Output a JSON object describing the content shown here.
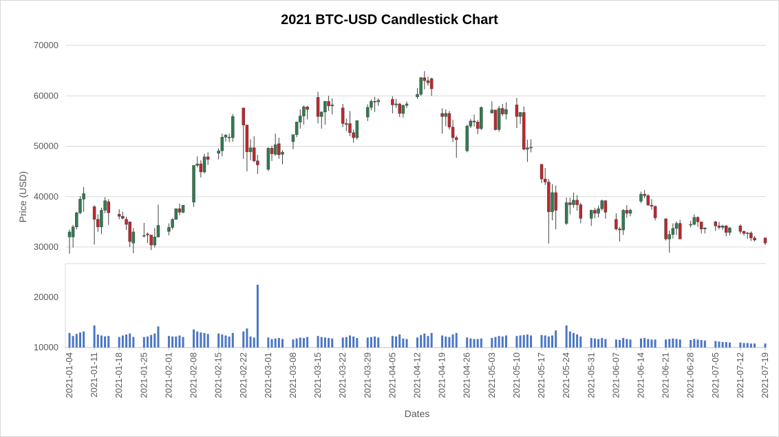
{
  "chart_data": {
    "title": "2021 BTC-USD Candlestick Chart",
    "xlabel": "Dates",
    "ylabel": "Price (USD)",
    "price_panel": {
      "type": "candlestick",
      "ylim": [
        28000,
        72000
      ],
      "yticks": [
        30000,
        40000,
        50000,
        60000,
        70000
      ],
      "grid": true,
      "up_color": "#2e7d4f",
      "down_color": "#c0262d"
    },
    "volume_panel": {
      "type": "bar",
      "ylim": [
        10000,
        25000
      ],
      "yticks": [
        10000,
        20000
      ],
      "bar_color": "#4a76c4"
    },
    "xtick_labels": [
      "2021-01-04",
      "2021-01-11",
      "2021-01-18",
      "2021-01-25",
      "2021-02-01",
      "2021-02-08",
      "2021-02-15",
      "2021-02-22",
      "2021-03-01",
      "2021-03-08",
      "2021-03-15",
      "2021-03-22",
      "2021-03-29",
      "2021-04-05",
      "2021-04-12",
      "2021-04-19",
      "2021-04-26",
      "2021-05-03",
      "2021-05-10",
      "2021-05-17",
      "2021-05-24",
      "2021-05-31",
      "2021-06-07",
      "2021-06-14",
      "2021-06-21",
      "2021-06-28",
      "2021-07-05",
      "2021-07-12",
      "2021-07-19"
    ],
    "candles": [
      [
        "2021-01-04",
        32000,
        33500,
        28700,
        33000,
        12900
      ],
      [
        "2021-01-05",
        32000,
        34400,
        29900,
        34000,
        12300
      ],
      [
        "2021-01-06",
        34000,
        37000,
        33500,
        36800,
        12700
      ],
      [
        "2021-01-07",
        36800,
        40100,
        36500,
        39500,
        13000
      ],
      [
        "2021-01-08",
        39500,
        41900,
        37000,
        40600,
        13200
      ],
      [
        "2021-01-11",
        38000,
        38300,
        30500,
        35500,
        14400
      ],
      [
        "2021-01-12",
        35500,
        36500,
        33000,
        34000,
        12600
      ],
      [
        "2021-01-13",
        34000,
        37800,
        32600,
        37300,
        12400
      ],
      [
        "2021-01-14",
        37300,
        39900,
        36700,
        39200,
        12200
      ],
      [
        "2021-01-15",
        39000,
        39500,
        34400,
        36800,
        12300
      ],
      [
        "2021-01-18",
        36500,
        37500,
        35500,
        36100,
        12100
      ],
      [
        "2021-01-19",
        36100,
        37000,
        35500,
        35700,
        12400
      ],
      [
        "2021-01-20",
        35500,
        36000,
        33400,
        34500,
        12600
      ],
      [
        "2021-01-21",
        35000,
        35000,
        30000,
        31100,
        12800
      ],
      [
        "2021-01-22",
        30800,
        33800,
        28800,
        33000,
        12100
      ],
      [
        "2021-01-25",
        32300,
        34800,
        31900,
        32300,
        12100
      ],
      [
        "2021-01-26",
        32600,
        32900,
        30800,
        32400,
        12200
      ],
      [
        "2021-01-27",
        32400,
        32400,
        29400,
        30400,
        12500
      ],
      [
        "2021-01-28",
        30400,
        33800,
        29900,
        32000,
        12800
      ],
      [
        "2021-01-29",
        32000,
        38400,
        31900,
        34300,
        14200
      ],
      [
        "2021-02-01",
        33100,
        34700,
        32300,
        33900,
        12300
      ],
      [
        "2021-02-02",
        33900,
        35700,
        33500,
        35500,
        12200
      ],
      [
        "2021-02-03",
        35500,
        37600,
        35400,
        37600,
        12200
      ],
      [
        "2021-02-04",
        37600,
        38600,
        36300,
        36900,
        12400
      ],
      [
        "2021-02-05",
        36900,
        38300,
        36700,
        38300,
        12100
      ],
      [
        "2021-02-08",
        38900,
        46200,
        38000,
        46200,
        13600
      ],
      [
        "2021-02-09",
        46200,
        48000,
        45800,
        46500,
        13200
      ],
      [
        "2021-02-10",
        46500,
        47200,
        43800,
        44900,
        13000
      ],
      [
        "2021-02-11",
        44900,
        48500,
        44600,
        47900,
        12900
      ],
      [
        "2021-02-12",
        47900,
        48800,
        46300,
        47400,
        12700
      ],
      [
        "2021-02-15",
        48600,
        49600,
        47400,
        49100,
        12800
      ],
      [
        "2021-02-16",
        49100,
        52500,
        48000,
        51800,
        12600
      ],
      [
        "2021-02-17",
        51800,
        52400,
        50900,
        52200,
        12400
      ],
      [
        "2021-02-18",
        51800,
        52500,
        50800,
        51700,
        12200
      ],
      [
        "2021-02-19",
        51700,
        56400,
        50900,
        55900,
        12900
      ],
      [
        "2021-02-22",
        57600,
        57600,
        47500,
        54200,
        13200
      ],
      [
        "2021-02-23",
        54200,
        54300,
        45000,
        48900,
        13800
      ],
      [
        "2021-02-24",
        48900,
        51400,
        47200,
        49700,
        12200
      ],
      [
        "2021-02-25",
        49700,
        52000,
        46800,
        47100,
        12000
      ],
      [
        "2021-02-26",
        47100,
        48300,
        44500,
        46300,
        22500
      ],
      [
        "2021-03-01",
        45400,
        49800,
        45100,
        49600,
        12000
      ],
      [
        "2021-03-02",
        49600,
        50100,
        47100,
        48500,
        11700
      ],
      [
        "2021-03-03",
        48400,
        52500,
        48100,
        50300,
        11800
      ],
      [
        "2021-03-04",
        50500,
        51700,
        47500,
        48300,
        11900
      ],
      [
        "2021-03-05",
        48400,
        49200,
        46400,
        48800,
        11700
      ],
      [
        "2021-03-08",
        50900,
        52000,
        49400,
        52300,
        11600
      ],
      [
        "2021-03-09",
        52300,
        54900,
        51800,
        54800,
        11800
      ],
      [
        "2021-03-10",
        54800,
        57300,
        53500,
        56000,
        12000
      ],
      [
        "2021-03-11",
        56000,
        58100,
        54300,
        57800,
        11900
      ],
      [
        "2021-03-12",
        57800,
        58000,
        55300,
        57300,
        12100
      ],
      [
        "2021-03-15",
        59700,
        60800,
        54500,
        55900,
        12300
      ],
      [
        "2021-03-16",
        55900,
        56900,
        53500,
        56800,
        12100
      ],
      [
        "2021-03-17",
        56800,
        58900,
        54300,
        58900,
        12000
      ],
      [
        "2021-03-18",
        58900,
        60000,
        57000,
        58000,
        11900
      ],
      [
        "2021-03-19",
        58000,
        59500,
        56300,
        58200,
        11800
      ],
      [
        "2021-03-22",
        57600,
        58400,
        53800,
        54500,
        12000
      ],
      [
        "2021-03-23",
        54500,
        55500,
        53000,
        54300,
        12100
      ],
      [
        "2021-03-24",
        54500,
        57000,
        52000,
        52700,
        12400
      ],
      [
        "2021-03-25",
        52700,
        53300,
        50700,
        51700,
        12200
      ],
      [
        "2021-03-26",
        51700,
        55100,
        51300,
        55100,
        11900
      ],
      [
        "2021-03-29",
        55800,
        58300,
        55000,
        57700,
        12000
      ],
      [
        "2021-03-30",
        57700,
        59300,
        57100,
        58900,
        12100
      ],
      [
        "2021-03-31",
        58900,
        59800,
        56800,
        58800,
        12200
      ],
      [
        "2021-04-01",
        58800,
        59500,
        58000,
        59100,
        12000
      ],
      [
        "2021-04-05",
        59300,
        59900,
        56500,
        58200,
        12300
      ],
      [
        "2021-04-06",
        58200,
        59400,
        57600,
        58400,
        12200
      ],
      [
        "2021-04-07",
        58400,
        58600,
        55800,
        56500,
        12600
      ],
      [
        "2021-04-08",
        56500,
        58300,
        55700,
        58100,
        11800
      ],
      [
        "2021-04-09",
        58100,
        58900,
        57600,
        58400,
        11700
      ],
      [
        "2021-04-12",
        59800,
        61500,
        59400,
        60300,
        12000
      ],
      [
        "2021-04-13",
        60300,
        63700,
        60000,
        63600,
        12500
      ],
      [
        "2021-04-14",
        63600,
        64900,
        61300,
        63000,
        12800
      ],
      [
        "2021-04-15",
        63000,
        63800,
        62000,
        62600,
        12300
      ],
      [
        "2021-04-16",
        63400,
        63600,
        60000,
        61400,
        12900
      ],
      [
        "2021-04-19",
        56500,
        57500,
        52500,
        55900,
        12400
      ],
      [
        "2021-04-20",
        55900,
        57300,
        54000,
        56500,
        12200
      ],
      [
        "2021-04-21",
        56500,
        57000,
        53300,
        53800,
        12100
      ],
      [
        "2021-04-22",
        53800,
        55200,
        50800,
        51700,
        12600
      ],
      [
        "2021-04-23",
        51700,
        52100,
        47700,
        51300,
        12900
      ],
      [
        "2021-04-26",
        49100,
        54300,
        48800,
        54000,
        12000
      ],
      [
        "2021-04-27",
        54000,
        55400,
        53600,
        55000,
        11800
      ],
      [
        "2021-04-28",
        55000,
        56300,
        53900,
        54800,
        11700
      ],
      [
        "2021-04-29",
        54800,
        55200,
        52400,
        53500,
        11700
      ],
      [
        "2021-04-30",
        53500,
        57900,
        53200,
        57700,
        11800
      ],
      [
        "2021-05-03",
        56600,
        58900,
        56500,
        57200,
        11900
      ],
      [
        "2021-05-04",
        57200,
        57200,
        53100,
        53300,
        12100
      ],
      [
        "2021-05-05",
        53300,
        58000,
        52900,
        57500,
        12300
      ],
      [
        "2021-05-06",
        57500,
        58400,
        56000,
        56400,
        12200
      ],
      [
        "2021-05-07",
        56400,
        58700,
        55300,
        57300,
        12400
      ],
      [
        "2021-05-10",
        58200,
        59600,
        53600,
        55900,
        12300
      ],
      [
        "2021-05-11",
        55900,
        56800,
        54400,
        56700,
        12400
      ],
      [
        "2021-05-12",
        56700,
        57900,
        49200,
        49400,
        12500
      ],
      [
        "2021-05-13",
        49400,
        51300,
        46900,
        49700,
        12600
      ],
      [
        "2021-05-14",
        49700,
        51400,
        48800,
        49800,
        12400
      ],
      [
        "2021-05-17",
        46400,
        46500,
        42700,
        43500,
        12500
      ],
      [
        "2021-05-18",
        43500,
        45700,
        42300,
        42900,
        12400
      ],
      [
        "2021-05-19",
        42900,
        43500,
        30700,
        37000,
        12200
      ],
      [
        "2021-05-20",
        37000,
        42500,
        35300,
        40800,
        12400
      ],
      [
        "2021-05-21",
        40800,
        42200,
        33500,
        37300,
        13400
      ],
      [
        "2021-05-24",
        34700,
        39800,
        34400,
        38800,
        14400
      ],
      [
        "2021-05-25",
        38800,
        39800,
        36500,
        38400,
        13200
      ],
      [
        "2021-05-26",
        38400,
        40800,
        37800,
        39300,
        12900
      ],
      [
        "2021-05-27",
        39300,
        40300,
        37200,
        38400,
        12600
      ],
      [
        "2021-05-28",
        38400,
        38800,
        34700,
        35700,
        12200
      ],
      [
        "2021-05-31",
        35700,
        37400,
        34200,
        37300,
        11900
      ],
      [
        "2021-06-01",
        37300,
        37800,
        35700,
        36700,
        11800
      ],
      [
        "2021-06-02",
        36700,
        38200,
        35900,
        37600,
        11700
      ],
      [
        "2021-06-03",
        37600,
        39400,
        37200,
        39200,
        11900
      ],
      [
        "2021-06-04",
        39200,
        39300,
        35600,
        36900,
        11700
      ],
      [
        "2021-06-07",
        35500,
        36700,
        33300,
        33600,
        11600
      ],
      [
        "2021-06-08",
        33600,
        34000,
        31100,
        33400,
        11500
      ],
      [
        "2021-06-09",
        33400,
        37500,
        32400,
        37300,
        11900
      ],
      [
        "2021-06-10",
        37300,
        38300,
        35800,
        36700,
        11700
      ],
      [
        "2021-06-11",
        36700,
        37600,
        36100,
        37300,
        11600
      ],
      [
        "2021-06-14",
        39100,
        41000,
        38700,
        40500,
        11800
      ],
      [
        "2021-06-15",
        40500,
        41300,
        39700,
        40200,
        11900
      ],
      [
        "2021-06-16",
        40200,
        40500,
        38300,
        38300,
        11700
      ],
      [
        "2021-06-17",
        38300,
        39500,
        37400,
        38100,
        11600
      ],
      [
        "2021-06-18",
        38100,
        38200,
        35300,
        35800,
        11600
      ],
      [
        "2021-06-21",
        35600,
        35700,
        31300,
        31600,
        11600
      ],
      [
        "2021-06-22",
        31600,
        33300,
        28900,
        32500,
        11700
      ],
      [
        "2021-06-23",
        32500,
        34700,
        31700,
        33700,
        11800
      ],
      [
        "2021-06-24",
        33700,
        35100,
        32400,
        34700,
        11700
      ],
      [
        "2021-06-25",
        34700,
        35400,
        31600,
        31600,
        11600
      ],
      [
        "2021-06-28",
        34500,
        35200,
        33900,
        34500,
        11500
      ],
      [
        "2021-06-29",
        34500,
        36500,
        34300,
        35900,
        11700
      ],
      [
        "2021-06-30",
        35900,
        36100,
        34000,
        35000,
        11600
      ],
      [
        "2021-07-01",
        35000,
        35000,
        32700,
        33600,
        11500
      ],
      [
        "2021-07-02",
        33600,
        33900,
        32700,
        33800,
        11400
      ],
      [
        "2021-07-05",
        35000,
        35200,
        33200,
        34200,
        11300
      ],
      [
        "2021-07-06",
        34200,
        35000,
        33500,
        33900,
        11200
      ],
      [
        "2021-07-07",
        33900,
        34400,
        33400,
        34200,
        11100
      ],
      [
        "2021-07-08",
        34200,
        34400,
        32100,
        32900,
        11100
      ],
      [
        "2021-07-09",
        32900,
        34000,
        32300,
        33800,
        11000
      ],
      [
        "2021-07-12",
        34200,
        34500,
        32600,
        33100,
        11000
      ],
      [
        "2021-07-13",
        33100,
        33300,
        32300,
        32700,
        10900
      ],
      [
        "2021-07-14",
        32700,
        33000,
        31600,
        32800,
        10900
      ],
      [
        "2021-07-15",
        32800,
        33100,
        31200,
        31800,
        10800
      ],
      [
        "2021-07-16",
        31800,
        32200,
        31100,
        31400,
        10800
      ],
      [
        "2021-07-19",
        31800,
        31900,
        30400,
        30800,
        10800
      ]
    ]
  }
}
